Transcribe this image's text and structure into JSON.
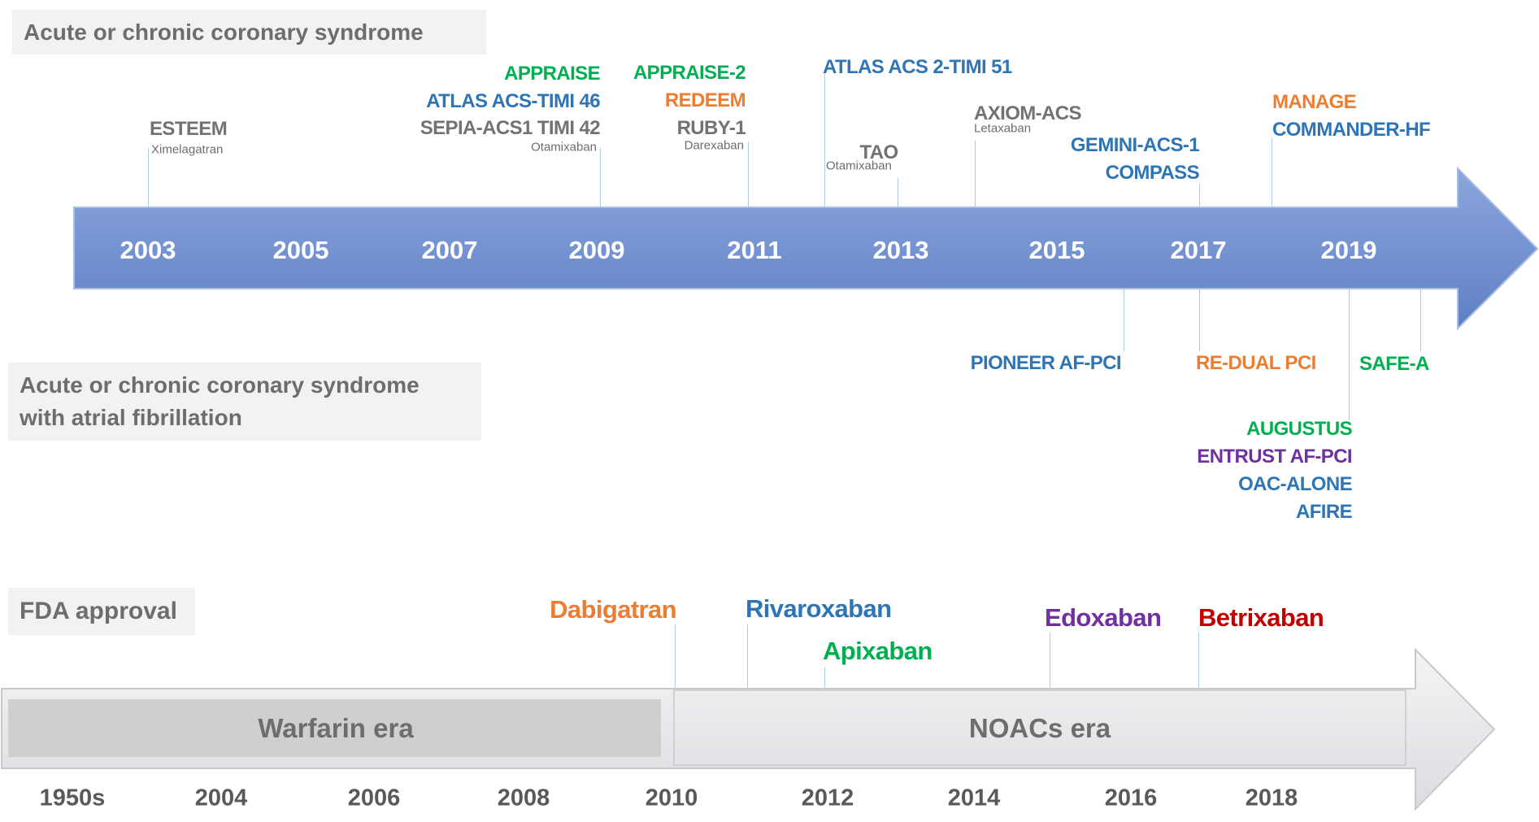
{
  "section_titles": {
    "acs": "Acute or chronic coronary syndrome",
    "acs_af_line1": "Acute or chronic coronary syndrome",
    "acs_af_line2": "with atrial fibrillation",
    "fda": "FDA approval"
  },
  "colors": {
    "green": "#00b050",
    "blue": "#2e75b6",
    "orange": "#ed7d31",
    "gray": "#767171",
    "purple": "#7030a0",
    "red": "#c00000"
  },
  "top_years": [
    "2003",
    "2005",
    "2007",
    "2009",
    "2011",
    "2013",
    "2015",
    "2017",
    "2019"
  ],
  "acs_trials": [
    {
      "name": "ESTEEM",
      "color": "gray",
      "drug": "Ximelagatran"
    },
    {
      "name": "APPRAISE",
      "color": "green"
    },
    {
      "name": "ATLAS ACS-TIMI 46",
      "color": "blue"
    },
    {
      "name": "SEPIA-ACS1 TIMI 42",
      "color": "gray",
      "drug": "Otamixaban"
    },
    {
      "name": "APPRAISE-2",
      "color": "green"
    },
    {
      "name": "REDEEM",
      "color": "orange"
    },
    {
      "name": "RUBY-1",
      "color": "gray",
      "drug": "Darexaban"
    },
    {
      "name": "ATLAS ACS 2-TIMI 51",
      "color": "blue"
    },
    {
      "name": "TAO",
      "color": "gray",
      "drug": "Otamixaban"
    },
    {
      "name": "AXIOM-ACS",
      "color": "gray",
      "drug": "Letaxaban"
    },
    {
      "name": "GEMINI-ACS-1",
      "color": "blue"
    },
    {
      "name": "COMPASS",
      "color": "blue"
    },
    {
      "name": "MANAGE",
      "color": "orange"
    },
    {
      "name": "COMMANDER-HF",
      "color": "blue"
    }
  ],
  "af_trials": [
    {
      "name": "PIONEER AF-PCI",
      "color": "blue"
    },
    {
      "name": "RE-DUAL PCI",
      "color": "orange"
    },
    {
      "name": "SAFE-A",
      "color": "green"
    },
    {
      "name": "AUGUSTUS",
      "color": "green"
    },
    {
      "name": "ENTRUST AF-PCI",
      "color": "purple"
    },
    {
      "name": "OAC-ALONE",
      "color": "blue"
    },
    {
      "name": "AFIRE",
      "color": "blue"
    }
  ],
  "fda_drugs": [
    {
      "name": "Dabigatran",
      "color": "orange"
    },
    {
      "name": "Rivaroxaban",
      "color": "blue"
    },
    {
      "name": "Apixaban",
      "color": "green"
    },
    {
      "name": "Edoxaban",
      "color": "purple"
    },
    {
      "name": "Betrixaban",
      "color": "red"
    }
  ],
  "eras": {
    "warfarin": "Warfarin era",
    "noacs": "NOACs era"
  },
  "bottom_years": [
    "1950s",
    "2004",
    "2006",
    "2008",
    "2010",
    "2012",
    "2014",
    "2016",
    "2018"
  ]
}
